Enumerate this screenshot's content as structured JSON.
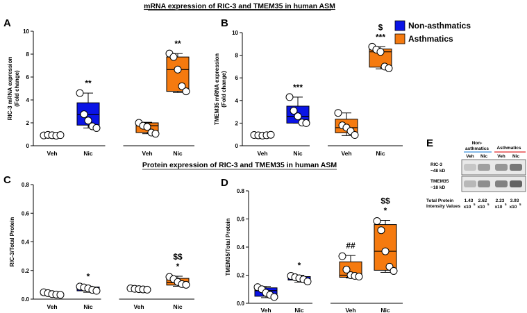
{
  "section_titles": {
    "mrna": "mRNA expression of RIC-3 and TMEM35 in human ASM",
    "protein": "Protein expression of RIC-3 and TMEM35 in human ASM"
  },
  "legend": {
    "items": [
      {
        "label": "Non-asthmatics",
        "color": "#0a14e6"
      },
      {
        "label": "Asthmatics",
        "color": "#f57a0f"
      }
    ]
  },
  "colors": {
    "non_asthmatic": "#0a14e6",
    "asthmatic": "#f57a0f"
  },
  "chart_data": [
    {
      "panel": "A",
      "type": "box",
      "ylabel_lines": [
        "RIC-3 mRNA expression",
        "(Fold change)"
      ],
      "ylim": [
        0,
        10
      ],
      "yticks": [
        0,
        2,
        4,
        6,
        8,
        10
      ],
      "categories": [
        "Veh",
        "Nic",
        "Veh",
        "Nic"
      ],
      "groups": [
        {
          "category": "Veh",
          "series": "Non-asthmatics",
          "q1": 0.9,
          "median": 0.92,
          "q3": 0.95,
          "whisker_low": 0.85,
          "whisker_high": 1.0,
          "points": [
            0.9,
            0.95,
            0.92,
            0.88,
            0.93
          ],
          "annotations": []
        },
        {
          "category": "Nic",
          "series": "Non-asthmatics",
          "q1": 1.8,
          "median": 2.75,
          "q3": 3.75,
          "whisker_low": 1.55,
          "whisker_high": 4.6,
          "points": [
            4.6,
            2.75,
            2.2,
            1.7,
            1.55
          ],
          "annotations": [
            "**"
          ]
        },
        {
          "category": "Veh",
          "series": "Asthmatics",
          "q1": 1.15,
          "median": 1.75,
          "q3": 2.0,
          "whisker_low": 1.05,
          "whisker_high": 2.05,
          "points": [
            2.0,
            1.75,
            1.65,
            1.15,
            1.05
          ],
          "annotations": []
        },
        {
          "category": "Nic",
          "series": "Asthmatics",
          "q1": 4.75,
          "median": 6.65,
          "q3": 7.75,
          "whisker_low": 4.65,
          "whisker_high": 8.05,
          "points": [
            8.05,
            7.75,
            6.65,
            5.2,
            4.75
          ],
          "annotations": [
            "**"
          ]
        }
      ]
    },
    {
      "panel": "B",
      "type": "box",
      "ylabel_lines": [
        "TMEM35 mRNA expression",
        "(Fold change)"
      ],
      "ylim": [
        0,
        10
      ],
      "yticks": [
        0,
        2,
        4,
        6,
        8,
        10
      ],
      "categories": [
        "Veh",
        "Nic",
        "Veh",
        "Nic"
      ],
      "groups": [
        {
          "category": "Veh",
          "series": "Non-asthmatics",
          "q1": 0.9,
          "median": 0.93,
          "q3": 0.97,
          "whisker_low": 0.88,
          "whisker_high": 1.0,
          "points": [
            0.95,
            0.92,
            0.9,
            0.93,
            0.97
          ],
          "annotations": []
        },
        {
          "category": "Nic",
          "series": "Non-asthmatics",
          "q1": 2.0,
          "median": 2.6,
          "q3": 3.5,
          "whisker_low": 2.0,
          "whisker_high": 4.3,
          "points": [
            4.3,
            3.1,
            2.6,
            2.05,
            2.0
          ],
          "annotations": [
            "***"
          ]
        },
        {
          "category": "Veh",
          "series": "Asthmatics",
          "q1": 1.15,
          "median": 1.6,
          "q3": 2.35,
          "whisker_low": 0.9,
          "whisker_high": 2.9,
          "points": [
            2.9,
            1.8,
            1.6,
            1.3,
            0.95
          ],
          "annotations": []
        },
        {
          "category": "Nic",
          "series": "Asthmatics",
          "q1": 6.95,
          "median": 8.3,
          "q3": 8.55,
          "whisker_low": 6.8,
          "whisker_high": 8.75,
          "points": [
            8.75,
            8.5,
            8.3,
            7.0,
            6.85
          ],
          "annotations": [
            "***",
            "$"
          ]
        }
      ]
    },
    {
      "panel": "C",
      "type": "box",
      "ylabel_lines": [
        "RIC-3/Total Protein"
      ],
      "ylim": [
        0,
        0.8
      ],
      "yticks": [
        0.0,
        0.2,
        0.4,
        0.6,
        0.8
      ],
      "categories": [
        "Veh",
        "Nic",
        "Veh",
        "Nic"
      ],
      "groups": [
        {
          "category": "Veh",
          "series": "Non-asthmatics",
          "q1": 0.03,
          "median": 0.035,
          "q3": 0.045,
          "whisker_low": 0.028,
          "whisker_high": 0.05,
          "points": [
            0.048,
            0.042,
            0.035,
            0.032,
            0.03
          ],
          "annotations": []
        },
        {
          "category": "Nic",
          "series": "Non-asthmatics",
          "q1": 0.058,
          "median": 0.075,
          "q3": 0.085,
          "whisker_low": 0.048,
          "whisker_high": 0.09,
          "points": [
            0.088,
            0.082,
            0.075,
            0.065,
            0.058
          ],
          "annotations": [
            "*"
          ]
        },
        {
          "category": "Veh",
          "series": "Asthmatics",
          "q1": 0.065,
          "median": 0.07,
          "q3": 0.075,
          "whisker_low": 0.062,
          "whisker_high": 0.078,
          "points": [
            0.075,
            0.072,
            0.07,
            0.068,
            0.066
          ],
          "annotations": []
        },
        {
          "category": "Nic",
          "series": "Asthmatics",
          "q1": 0.098,
          "median": 0.115,
          "q3": 0.145,
          "whisker_low": 0.09,
          "whisker_high": 0.16,
          "points": [
            0.155,
            0.14,
            0.12,
            0.105,
            0.1
          ],
          "annotations": [
            "*",
            "$$"
          ]
        }
      ]
    },
    {
      "panel": "D",
      "type": "box",
      "ylabel_lines": [
        "TMEM35/Total Protein"
      ],
      "ylim": [
        0,
        0.8
      ],
      "yticks": [
        0.0,
        0.2,
        0.4,
        0.6,
        0.8
      ],
      "categories": [
        "Veh",
        "Nic",
        "Veh",
        "Nic"
      ],
      "groups": [
        {
          "category": "Veh",
          "series": "Non-asthmatics",
          "q1": 0.05,
          "median": 0.09,
          "q3": 0.11,
          "whisker_low": 0.04,
          "whisker_high": 0.12,
          "points": [
            0.115,
            0.1,
            0.075,
            0.06,
            0.045
          ],
          "annotations": []
        },
        {
          "category": "Nic",
          "series": "Non-asthmatics",
          "q1": 0.165,
          "median": 0.175,
          "q3": 0.19,
          "whisker_low": 0.15,
          "whisker_high": 0.2,
          "points": [
            0.195,
            0.185,
            0.178,
            0.17,
            0.155
          ],
          "annotations": [
            "*"
          ]
        },
        {
          "category": "Veh",
          "series": "Asthmatics",
          "q1": 0.185,
          "median": 0.2,
          "q3": 0.295,
          "whisker_low": 0.18,
          "whisker_high": 0.34,
          "points": [
            0.335,
            0.24,
            0.2,
            0.195,
            0.19
          ],
          "annotations": [
            "##"
          ]
        },
        {
          "category": "Nic",
          "series": "Asthmatics",
          "q1": 0.235,
          "median": 0.37,
          "q3": 0.56,
          "whisker_low": 0.22,
          "whisker_high": 0.59,
          "points": [
            0.585,
            0.52,
            0.37,
            0.26,
            0.23
          ],
          "annotations": [
            "*",
            "$$"
          ]
        }
      ]
    }
  ],
  "blot": {
    "panel": "E",
    "groups": [
      {
        "label_lines": [
          "Non-",
          "asthmatics"
        ],
        "underline": "#3a8fd9",
        "lanes": [
          "Veh",
          "Nic"
        ]
      },
      {
        "label_lines": [
          "Asthmatics"
        ],
        "underline": "#e0282a",
        "lanes": [
          "Veh",
          "Nic"
        ]
      }
    ],
    "rows": [
      {
        "label_lines": [
          "RIC-3",
          "~48 kD"
        ],
        "band_darkness": [
          0.22,
          0.45,
          0.5,
          0.68
        ]
      },
      {
        "label_lines": [
          "TMEM35",
          "~18 kD"
        ],
        "band_darkness": [
          0.3,
          0.55,
          0.62,
          0.8
        ]
      }
    ],
    "intensity_label_lines": [
      "Total Protein",
      "Intensity Values"
    ],
    "intensity_values": [
      {
        "mantissa": "1.43",
        "exp_base": "x10",
        "exponent": "5"
      },
      {
        "mantissa": "2.62",
        "exp_base": "x10",
        "exponent": "5"
      },
      {
        "mantissa": "2.23",
        "exp_base": "x10",
        "exponent": "5"
      },
      {
        "mantissa": "3.93",
        "exp_base": "x10",
        "exponent": "5"
      }
    ]
  }
}
